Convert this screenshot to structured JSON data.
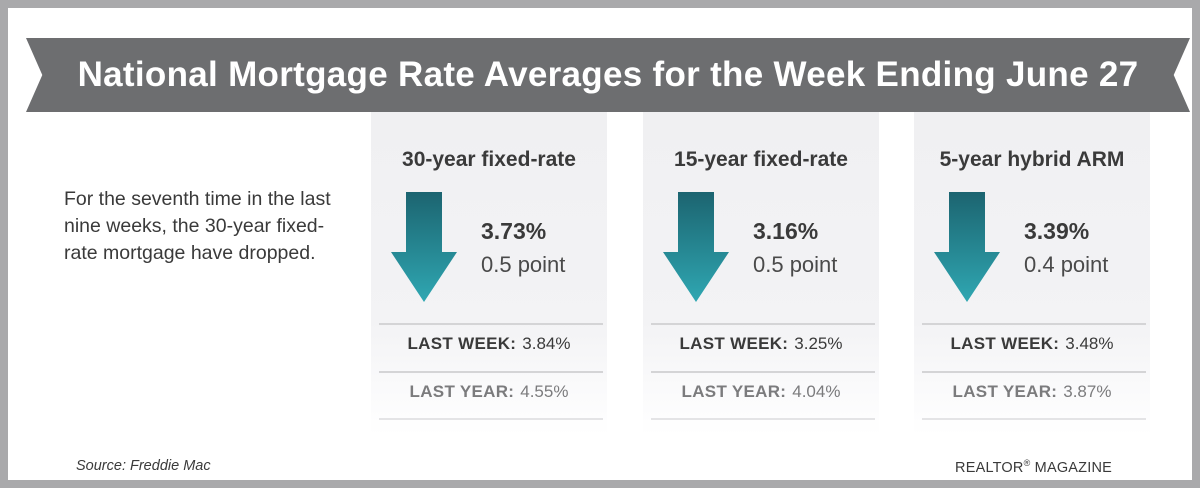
{
  "banner": {
    "title": "National Mortgage Rate Averages for the Week Ending June 27"
  },
  "intro": {
    "text": "For the seventh time in the last nine weeks, the 30-year fixed-rate mortgage have dropped."
  },
  "colors": {
    "banner": "#6d6e70",
    "arrow_top": "#1c6470",
    "arrow_bottom": "#2fa7b2",
    "frame": "#a9a9ab"
  },
  "cards": [
    {
      "title": "30-year fixed-rate",
      "icon": "down-arrow-icon",
      "rate": "3.73%",
      "change": "0.5 point",
      "last_week_label": "LAST WEEK:",
      "last_week_value": "3.84%",
      "last_year_label": "LAST YEAR:",
      "last_year_value": "4.55%"
    },
    {
      "title": "15-year fixed-rate",
      "icon": "down-arrow-icon",
      "rate": "3.16%",
      "change": "0.5 point",
      "last_week_label": "LAST WEEK:",
      "last_week_value": "3.25%",
      "last_year_label": "LAST YEAR:",
      "last_year_value": "4.04%"
    },
    {
      "title": "5-year hybrid ARM",
      "icon": "down-arrow-icon",
      "rate": "3.39%",
      "change": "0.4 point",
      "last_week_label": "LAST WEEK:",
      "last_week_value": "3.48%",
      "last_year_label": "LAST YEAR:",
      "last_year_value": "3.87%"
    }
  ],
  "footer": {
    "source": "Source: Freddie Mac",
    "publisher": "REALTOR",
    "publisher_mark": "®",
    "publisher_suffix": " MAGAZINE"
  }
}
